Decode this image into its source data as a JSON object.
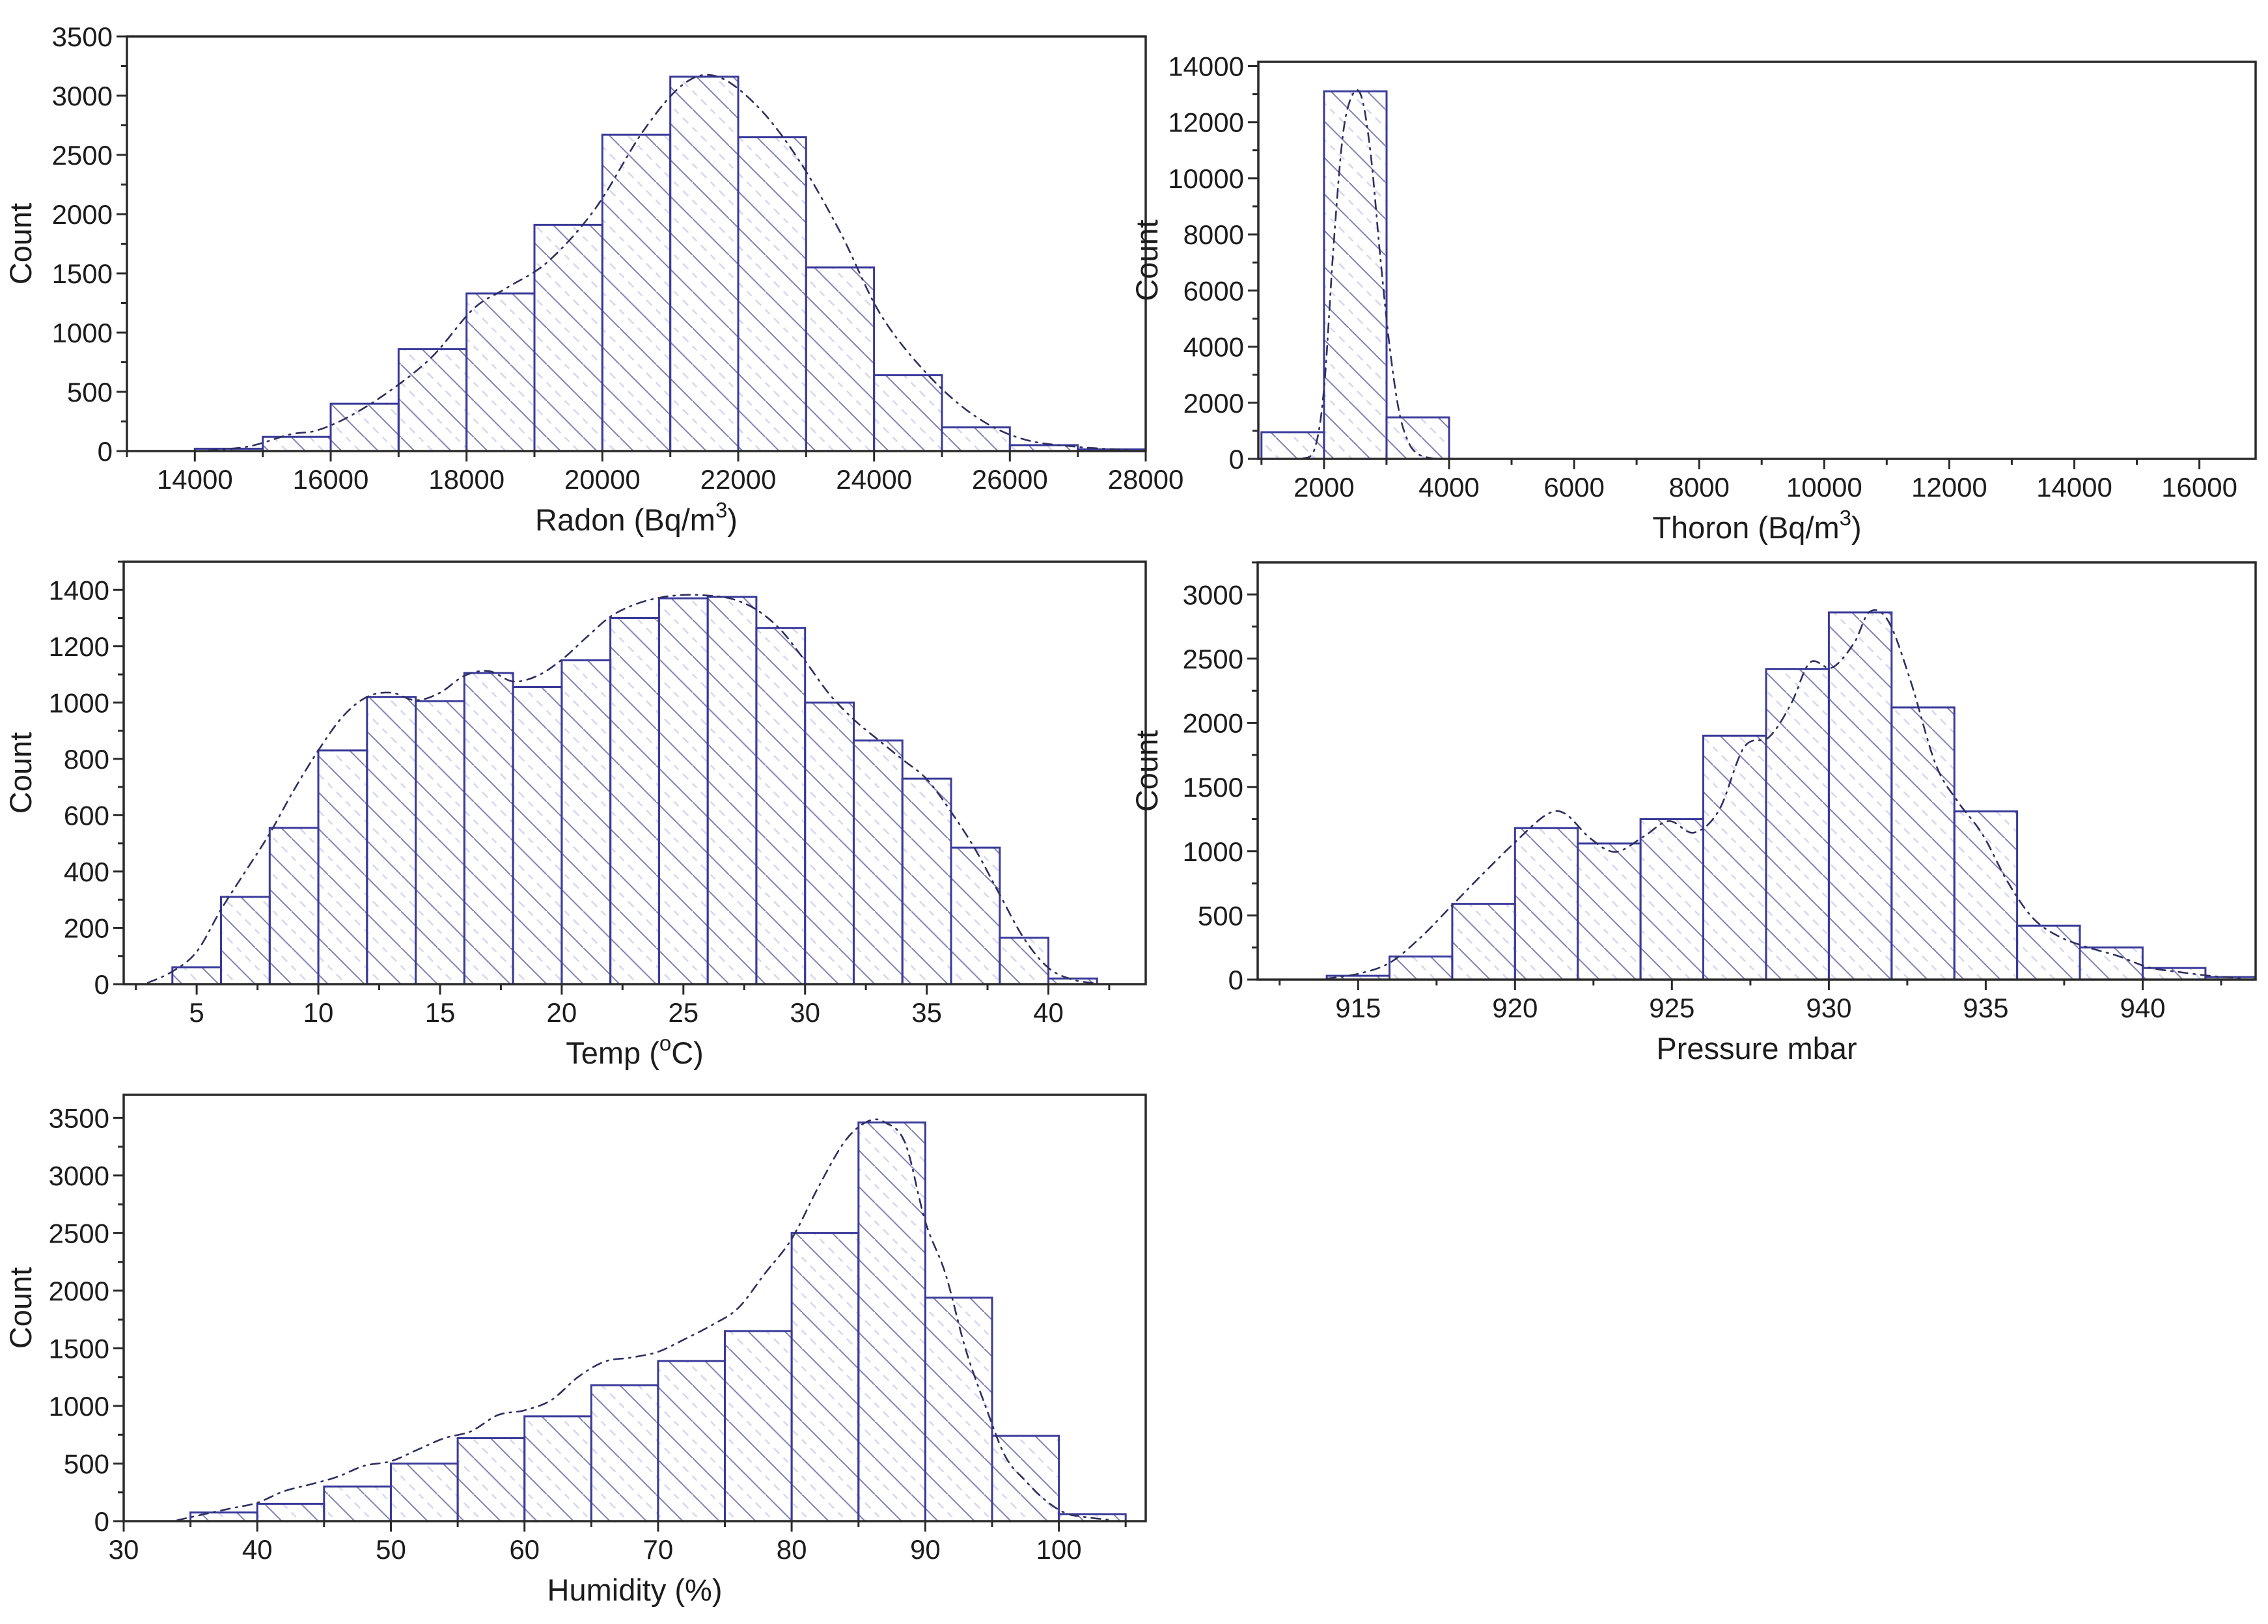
{
  "figure": {
    "background": "#ffffff",
    "description": "Five frequency histograms with dash-dot distribution fit curves"
  },
  "style": {
    "bar_edge": "#3a3a9a",
    "hatch_dark": "#8080b4",
    "hatch_light": "#d7d7ef",
    "curve": "#2e2e60",
    "axis": "#2a2a2a",
    "text": "#1c1c1c"
  },
  "chart_data": [
    {
      "type": "bar",
      "subtype": "histogram",
      "title": "",
      "xlabel": "Radon (Bq/m3)",
      "xlabel_segments": [
        {
          "t": "Radon (Bq/m"
        },
        {
          "t": "3",
          "sup": true
        },
        {
          "t": ")"
        }
      ],
      "ylabel": "Count",
      "xlim": [
        13000,
        28000
      ],
      "ylim": [
        0,
        3500
      ],
      "x_ticks": [
        14000,
        16000,
        18000,
        20000,
        22000,
        24000,
        26000,
        28000
      ],
      "y_ticks": [
        0,
        500,
        1000,
        1500,
        2000,
        2500,
        3000,
        3500
      ],
      "bin_start": 14000,
      "bin_width": 1000,
      "counts": [
        20,
        120,
        400,
        860,
        1330,
        1910,
        2670,
        3160,
        2650,
        1550,
        640,
        200,
        50,
        15
      ],
      "fit_curve": [
        [
          14200,
          5
        ],
        [
          14800,
          40
        ],
        [
          15400,
          140
        ],
        [
          15800,
          175
        ],
        [
          16300,
          300
        ],
        [
          16900,
          520
        ],
        [
          17500,
          800
        ],
        [
          18100,
          1200
        ],
        [
          18600,
          1380
        ],
        [
          19200,
          1600
        ],
        [
          19900,
          2050
        ],
        [
          20600,
          2700
        ],
        [
          21200,
          3100
        ],
        [
          21700,
          3160
        ],
        [
          22300,
          2900
        ],
        [
          22900,
          2450
        ],
        [
          23500,
          1850
        ],
        [
          24100,
          1150
        ],
        [
          24800,
          640
        ],
        [
          25500,
          290
        ],
        [
          26200,
          100
        ],
        [
          27000,
          35
        ],
        [
          27800,
          8
        ]
      ]
    },
    {
      "type": "bar",
      "subtype": "histogram",
      "title": "",
      "xlabel": "Thoron (Bq/m3)",
      "xlabel_segments": [
        {
          "t": "Thoron (Bq/m"
        },
        {
          "t": "3",
          "sup": true
        },
        {
          "t": ")"
        }
      ],
      "ylabel": "Count",
      "xlim": [
        950,
        16900
      ],
      "ylim": [
        0,
        14150
      ],
      "x_ticks": [
        2000,
        4000,
        6000,
        8000,
        10000,
        12000,
        14000,
        16000
      ],
      "y_ticks": [
        0,
        2000,
        4000,
        6000,
        8000,
        10000,
        12000,
        14000
      ],
      "bin_start": 1000,
      "bin_width": 1000,
      "counts": [
        950,
        13100,
        1480
      ],
      "fit_curve": [
        [
          1650,
          10
        ],
        [
          1850,
          350
        ],
        [
          2000,
          2500
        ],
        [
          2150,
          7500
        ],
        [
          2300,
          11500
        ],
        [
          2450,
          12950
        ],
        [
          2600,
          12900
        ],
        [
          2750,
          10800
        ],
        [
          2900,
          7200
        ],
        [
          3050,
          4000
        ],
        [
          3200,
          1700
        ],
        [
          3350,
          600
        ],
        [
          3500,
          180
        ],
        [
          3700,
          30
        ],
        [
          3900,
          5
        ]
      ]
    },
    {
      "type": "bar",
      "subtype": "histogram",
      "title": "",
      "xlabel": "Temp (oC)",
      "xlabel_segments": [
        {
          "t": "Temp ("
        },
        {
          "t": "o",
          "sup": true
        },
        {
          "t": "C)"
        }
      ],
      "ylabel": "Count",
      "xlim": [
        2,
        44
      ],
      "ylim": [
        0,
        1500
      ],
      "x_ticks": [
        5,
        10,
        15,
        20,
        25,
        30,
        35,
        40
      ],
      "y_ticks": [
        0,
        200,
        400,
        600,
        800,
        1000,
        1200,
        1400
      ],
      "bin_start": 4,
      "bin_width": 2,
      "counts": [
        60,
        310,
        555,
        830,
        1020,
        1005,
        1105,
        1055,
        1150,
        1300,
        1370,
        1375,
        1265,
        1000,
        865,
        730,
        485,
        165,
        20
      ],
      "fit_curve": [
        [
          3,
          5
        ],
        [
          4,
          45
        ],
        [
          5,
          115
        ],
        [
          6,
          265
        ],
        [
          7,
          400
        ],
        [
          8,
          535
        ],
        [
          9,
          690
        ],
        [
          10,
          830
        ],
        [
          11,
          950
        ],
        [
          12,
          1020
        ],
        [
          13,
          1035
        ],
        [
          14,
          1008
        ],
        [
          15,
          1035
        ],
        [
          16,
          1095
        ],
        [
          17,
          1112
        ],
        [
          18,
          1075
        ],
        [
          19,
          1095
        ],
        [
          20,
          1152
        ],
        [
          21,
          1230
        ],
        [
          22,
          1305
        ],
        [
          23,
          1348
        ],
        [
          24,
          1372
        ],
        [
          25,
          1382
        ],
        [
          26,
          1380
        ],
        [
          27,
          1368
        ],
        [
          28,
          1330
        ],
        [
          29,
          1258
        ],
        [
          30,
          1148
        ],
        [
          31,
          1030
        ],
        [
          32,
          940
        ],
        [
          33,
          868
        ],
        [
          34,
          798
        ],
        [
          35,
          728
        ],
        [
          36,
          612
        ],
        [
          37,
          478
        ],
        [
          38,
          318
        ],
        [
          39,
          162
        ],
        [
          40,
          58
        ],
        [
          41,
          16
        ],
        [
          42,
          3
        ]
      ]
    },
    {
      "type": "bar",
      "subtype": "histogram",
      "title": "",
      "xlabel": "Pressure mbar",
      "xlabel_segments": [
        {
          "t": "Pressure mbar"
        }
      ],
      "ylabel": "Count",
      "xlim": [
        911.8,
        943.6
      ],
      "ylim": [
        0,
        3250
      ],
      "x_ticks": [
        915,
        920,
        925,
        930,
        935,
        940
      ],
      "y_ticks": [
        0,
        500,
        1000,
        1500,
        2000,
        2500,
        3000
      ],
      "bin_start": 914,
      "bin_width": 2,
      "counts": [
        30,
        180,
        590,
        1180,
        1060,
        1250,
        1900,
        2420,
        2860,
        2120,
        1310,
        420,
        250,
        90,
        20
      ],
      "fit_curve": [
        [
          914,
          8
        ],
        [
          915,
          45
        ],
        [
          916,
          130
        ],
        [
          917,
          330
        ],
        [
          918,
          580
        ],
        [
          919,
          830
        ],
        [
          920,
          1070
        ],
        [
          921,
          1285
        ],
        [
          921.6,
          1292
        ],
        [
          922.4,
          1100
        ],
        [
          923.2,
          995
        ],
        [
          924.1,
          1115
        ],
        [
          924.9,
          1235
        ],
        [
          925.7,
          1145
        ],
        [
          926.5,
          1320
        ],
        [
          927.3,
          1810
        ],
        [
          928.1,
          1890
        ],
        [
          928.8,
          2150
        ],
        [
          929.4,
          2470
        ],
        [
          930.1,
          2430
        ],
        [
          930.8,
          2620
        ],
        [
          931.3,
          2865
        ],
        [
          931.9,
          2790
        ],
        [
          932.6,
          2330
        ],
        [
          933.4,
          1680
        ],
        [
          934.1,
          1390
        ],
        [
          934.9,
          1130
        ],
        [
          935.7,
          760
        ],
        [
          936.5,
          480
        ],
        [
          937.3,
          340
        ],
        [
          938.2,
          255
        ],
        [
          939.2,
          185
        ],
        [
          940.2,
          95
        ],
        [
          941.2,
          58
        ],
        [
          942.2,
          28
        ],
        [
          943.2,
          10
        ]
      ]
    },
    {
      "type": "bar",
      "subtype": "histogram",
      "title": "",
      "xlabel": "Humidity (%)",
      "xlabel_segments": [
        {
          "t": "Humidity (%)"
        }
      ],
      "ylabel": "Count",
      "xlim": [
        30,
        106.5
      ],
      "ylim": [
        0,
        3700
      ],
      "x_ticks": [
        30,
        40,
        50,
        60,
        70,
        80,
        90,
        100
      ],
      "y_ticks": [
        0,
        500,
        1000,
        1500,
        2000,
        2500,
        3000,
        3500
      ],
      "bin_start": 35,
      "bin_width": 5,
      "counts": [
        75,
        150,
        300,
        500,
        720,
        910,
        1180,
        1390,
        1650,
        2500,
        3460,
        1940,
        740,
        60
      ],
      "fit_curve": [
        [
          34,
          8
        ],
        [
          36,
          60
        ],
        [
          38,
          110
        ],
        [
          40,
          160
        ],
        [
          42,
          260
        ],
        [
          44,
          320
        ],
        [
          46,
          385
        ],
        [
          48,
          480
        ],
        [
          50,
          520
        ],
        [
          52,
          620
        ],
        [
          54,
          720
        ],
        [
          56,
          780
        ],
        [
          58,
          920
        ],
        [
          60,
          962
        ],
        [
          62,
          1050
        ],
        [
          64,
          1250
        ],
        [
          66,
          1385
        ],
        [
          68,
          1420
        ],
        [
          70,
          1470
        ],
        [
          72,
          1580
        ],
        [
          74,
          1700
        ],
        [
          76,
          1850
        ],
        [
          78,
          2150
        ],
        [
          80,
          2450
        ],
        [
          82,
          2900
        ],
        [
          84,
          3300
        ],
        [
          85.7,
          3470
        ],
        [
          87,
          3460
        ],
        [
          88.5,
          3280
        ],
        [
          90,
          2600
        ],
        [
          91.5,
          2150
        ],
        [
          93,
          1500
        ],
        [
          94.5,
          1000
        ],
        [
          96,
          560
        ],
        [
          97.5,
          350
        ],
        [
          99,
          180
        ],
        [
          100.5,
          70
        ],
        [
          102,
          35
        ],
        [
          104,
          8
        ]
      ]
    }
  ]
}
